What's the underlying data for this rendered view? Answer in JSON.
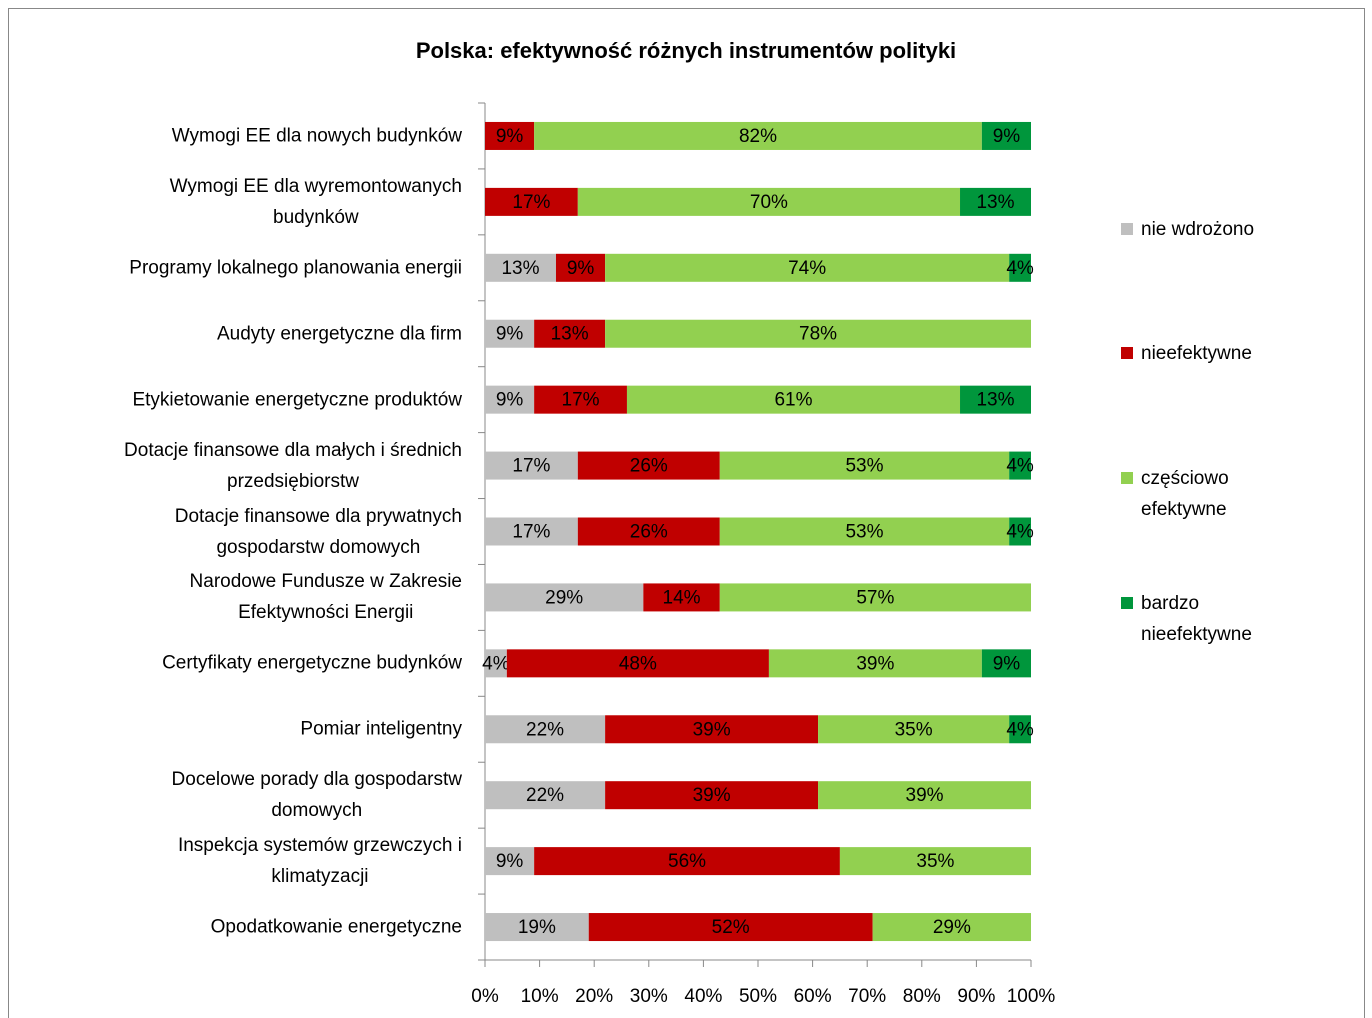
{
  "chart_data": {
    "type": "stacked_barh",
    "title": "Polska: efektywność różnych instrumentów polityki",
    "categories": [
      "Wymogi EE dla nowych budynków",
      "Wymogi EE dla wyremontowanych\nbudynków",
      "Programy lokalnego planowania energii",
      "Audyty energetyczne dla firm",
      "Etykietowanie energetyczne produktów",
      "Dotacje finansowe dla małych i średnich\nprzedsiębiorstw",
      "Dotacje finansowe dla prywatnych\ngospodarstw domowych",
      "Narodowe Fundusze w Zakresie\nEfektywności Energii",
      "Certyfikaty energetyczne budynków",
      "Pomiar inteligentny",
      "Docelowe porady dla gospodarstw\ndomowych",
      "Inspekcja systemów grzewczych i\nklimatyzacji",
      "Opodatkowanie energetyczne"
    ],
    "series": [
      {
        "name": "nie wdrożono",
        "color": "#bfbfbf",
        "values": [
          null,
          null,
          13,
          9,
          9,
          17,
          17,
          29,
          4,
          22,
          22,
          9,
          19
        ],
        "value_labels": [
          null,
          null,
          "13%",
          "9%",
          "9%",
          "17%",
          "17%",
          "29%",
          "4%",
          "22%",
          "22%",
          "9%",
          "19%"
        ]
      },
      {
        "name": "nieefektywne",
        "color": "#c00000",
        "values": [
          9,
          17,
          9,
          13,
          17,
          26,
          26,
          14,
          48,
          39,
          39,
          56,
          52
        ],
        "value_labels": [
          "9%",
          "17%",
          "9%",
          "13%",
          "17%",
          "26%",
          "26%",
          "14%",
          "48%",
          "39%",
          "39%",
          "56%",
          "52%"
        ]
      },
      {
        "name": "częściowo\nefektywne",
        "color": "#92d050",
        "values": [
          82,
          70,
          74,
          78,
          61,
          53,
          53,
          57,
          39,
          35,
          39,
          35,
          29
        ],
        "value_labels": [
          "82%",
          "70%",
          "74%",
          "78%",
          "61%",
          "53%",
          "53%",
          "57%",
          "39%",
          "35%",
          "39%",
          "35%",
          "29%"
        ]
      },
      {
        "name": "bardzo\nnieefektywne",
        "color": "#00963c",
        "values": [
          9,
          13,
          4,
          null,
          13,
          4,
          4,
          null,
          9,
          4,
          null,
          null,
          null
        ],
        "value_labels": [
          "9%",
          "13%",
          "4%",
          null,
          "13%",
          "4%",
          "4%",
          null,
          "9%",
          "4%",
          null,
          null,
          null
        ]
      }
    ],
    "xlim": [
      0,
      100
    ],
    "xticks": [
      {
        "value": 0,
        "label": "0%"
      },
      {
        "value": 10,
        "label": "10%"
      },
      {
        "value": 20,
        "label": "20%"
      },
      {
        "value": 30,
        "label": "30%"
      },
      {
        "value": 40,
        "label": "40%"
      },
      {
        "value": 50,
        "label": "50%"
      },
      {
        "value": 60,
        "label": "60%"
      },
      {
        "value": 70,
        "label": "70%"
      },
      {
        "value": 80,
        "label": "80%"
      },
      {
        "value": 90,
        "label": "90%"
      },
      {
        "value": 100,
        "label": "100%"
      }
    ]
  }
}
